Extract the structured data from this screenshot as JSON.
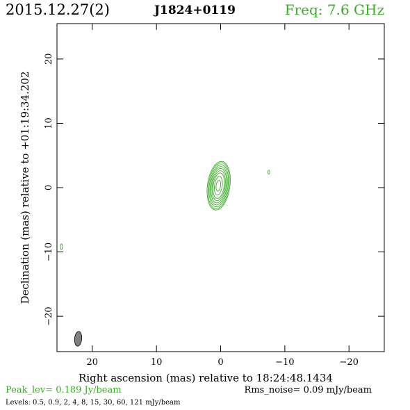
{
  "header": {
    "date": "2015.12.27(2)",
    "source": "J1824+0119",
    "freq": "Freq: 7.6 GHz"
  },
  "footer": {
    "peak": "Peak_lev=  0.189 Jy/beam",
    "rms": "Rms_noise= 0.09 mJy/beam",
    "levels": "Levels: 0.5, 0.9,   2,   4,   8,  15,  30,  60, 121 mJy/beam"
  },
  "colors": {
    "contour": "#3cab2a",
    "beam": "#808080",
    "axis": "#000000",
    "freq_text": "#3cab2a",
    "peak_text": "#3cab2a"
  },
  "chart_data": {
    "type": "contour",
    "xlabel": "Right ascension (mas) relative to 18:24:48.1434",
    "ylabel": "Declination (mas) relative to +01:19:34.202",
    "xlim": [
      25.5,
      -25.5
    ],
    "ylim": [
      -25.5,
      25.5
    ],
    "x_reversed": true,
    "xticks": [
      20,
      10,
      0,
      -10,
      -20
    ],
    "xtick_labels": [
      "20",
      "10",
      "0",
      "−10",
      "−20"
    ],
    "yticks": [
      20,
      10,
      0,
      -10,
      -20
    ],
    "ytick_labels": [
      "20",
      "10",
      "0",
      "−10",
      "−20"
    ],
    "grid": false,
    "levels_mJy": [
      0.5,
      0.9,
      2,
      4,
      8,
      15,
      30,
      60,
      121
    ],
    "peak_Jy_per_beam": 0.189,
    "rms_mJy_per_beam": 0.09,
    "core": {
      "x": 0.3,
      "y": 0.3,
      "contours": [
        {
          "a": 1.75,
          "b": 3.8,
          "dx": 0.0,
          "dy": 0.0
        },
        {
          "a": 1.6,
          "b": 3.6,
          "dx": 0.0,
          "dy": 0.0
        },
        {
          "a": 1.45,
          "b": 3.3,
          "dx": 0.0,
          "dy": 0.0
        },
        {
          "a": 1.3,
          "b": 3.0,
          "dx": 0.0,
          "dy": 0.0
        },
        {
          "a": 1.15,
          "b": 2.7,
          "dx": 0.0,
          "dy": 0.0
        },
        {
          "a": 1.0,
          "b": 2.35,
          "dx": 0.0,
          "dy": 0.0
        },
        {
          "a": 0.85,
          "b": 2.0,
          "dx": 0.0,
          "dy": 0.0
        },
        {
          "a": 0.6,
          "b": 1.45,
          "dx": 0.05,
          "dy": 0.0
        },
        {
          "a": 0.35,
          "b": 0.85,
          "dx": 0.05,
          "dy": 0.0
        }
      ],
      "tilt_deg": 8
    },
    "features": [
      {
        "x": -7.5,
        "y": 2.4,
        "a": 0.15,
        "b": 0.3
      },
      {
        "x": 24.8,
        "y": -9.2,
        "a": 0.15,
        "b": 0.45
      }
    ],
    "beam": {
      "x": 22.2,
      "y": -23.5,
      "a": 0.55,
      "b": 1.15,
      "tilt_deg": 5
    }
  }
}
